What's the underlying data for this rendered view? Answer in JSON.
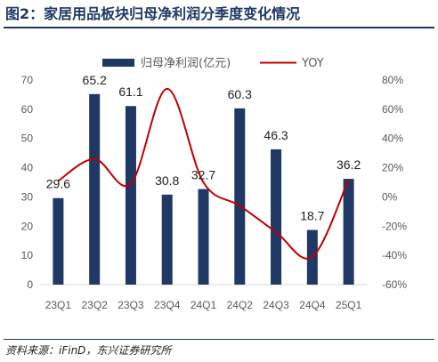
{
  "figure": {
    "title": "图2：家居用品板块归母净利润分季度变化情况",
    "source": "资料来源：iFinD，东兴证券研究所"
  },
  "colors": {
    "bar": "#1f3864",
    "line": "#c00000",
    "title": "#1f3864",
    "axis_text": "#595959"
  },
  "chart_data": {
    "type": "bar",
    "categories": [
      "23Q1",
      "23Q2",
      "23Q3",
      "23Q4",
      "24Q1",
      "24Q2",
      "24Q3",
      "24Q4",
      "25Q1"
    ],
    "series": [
      {
        "name": "归母净利润(亿元)",
        "type": "bar",
        "axis": "left",
        "values": [
          29.6,
          65.2,
          61.1,
          30.8,
          32.7,
          60.3,
          46.3,
          18.7,
          36.2
        ],
        "labels": [
          "29.6",
          "65.2",
          "61.1",
          "30.8",
          "32.7",
          "60.3",
          "46.3",
          "18.7",
          "36.2"
        ]
      },
      {
        "name": "YOY",
        "type": "line",
        "axis": "right",
        "smooth": true,
        "values": [
          11,
          26,
          9,
          74,
          10,
          -6,
          -24,
          -41,
          12
        ]
      }
    ],
    "y_left": {
      "min": 0,
      "max": 70,
      "ticks": [
        "0",
        "10",
        "20",
        "30",
        "40",
        "50",
        "60",
        "70"
      ]
    },
    "y_right": {
      "min": -60,
      "max": 80,
      "ticks": [
        "-60%",
        "-40%",
        "-20%",
        "0%",
        "20%",
        "40%",
        "60%",
        "80%"
      ]
    },
    "legend_position": "top",
    "grid": false
  }
}
